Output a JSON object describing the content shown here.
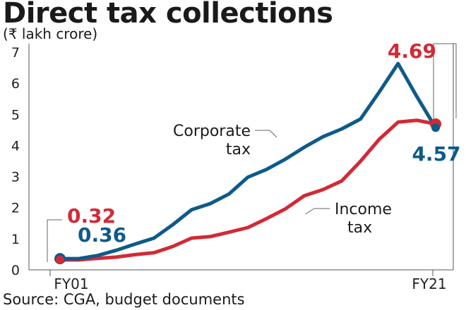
{
  "chart_data": {
    "type": "line",
    "title": "Direct tax collections",
    "subtitle": "(₹ lakh crore)",
    "source": "Source: CGA, budget documents",
    "x_tick_labels": [
      "FY01",
      "FY21"
    ],
    "ylim": [
      0,
      7
    ],
    "y_ticks": [
      "0",
      "1",
      "2",
      "3",
      "4",
      "5",
      "6",
      "7"
    ],
    "grid": false,
    "series": [
      {
        "name": "Corporate tax",
        "label_lines": [
          "Corporate",
          "tax"
        ],
        "color": "#0e5a8a",
        "values": [
          0.36,
          0.36,
          0.46,
          0.63,
          0.83,
          1.02,
          1.45,
          1.93,
          2.13,
          2.44,
          2.98,
          3.23,
          3.56,
          3.94,
          4.28,
          4.53,
          4.85,
          5.72,
          6.63,
          5.57,
          4.57
        ]
      },
      {
        "name": "Income tax",
        "label_lines": [
          "Income",
          "tax"
        ],
        "color": "#d12a36",
        "values": [
          0.32,
          0.32,
          0.37,
          0.41,
          0.49,
          0.55,
          0.75,
          1.02,
          1.07,
          1.21,
          1.36,
          1.65,
          1.96,
          2.38,
          2.58,
          2.86,
          3.49,
          4.2,
          4.75,
          4.81,
          4.69
        ]
      }
    ],
    "annotations": [
      {
        "text": "0.32",
        "color": "#d12a36"
      },
      {
        "text": "0.36",
        "color": "#0e5a8a"
      },
      {
        "text": "4.69",
        "color": "#d12a36"
      },
      {
        "text": "4.57",
        "color": "#0e5a8a"
      }
    ]
  }
}
